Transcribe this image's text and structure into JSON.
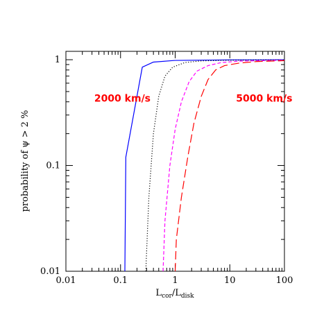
{
  "chart_data": {
    "type": "line",
    "xscale": "log",
    "yscale": "log",
    "xlim": [
      0.01,
      100
    ],
    "ylim": [
      0.01,
      1.2
    ],
    "xticks": [
      {
        "value": 0.01,
        "label": "0.01"
      },
      {
        "value": 0.1,
        "label": "0.1"
      },
      {
        "value": 1,
        "label": "1"
      },
      {
        "value": 10,
        "label": "10"
      },
      {
        "value": 100,
        "label": "100"
      }
    ],
    "yticks": [
      {
        "value": 0.01,
        "label": "0.01"
      },
      {
        "value": 0.1,
        "label": "0.1"
      },
      {
        "value": 1,
        "label": "1"
      }
    ],
    "ylabel": "probability of ψ > 2 %",
    "xlabel": {
      "main": "L",
      "sub1": "cor",
      "slash": "/L",
      "sub2": "disk"
    },
    "annotations": [
      {
        "text": "2000 km/s",
        "color": "#ff0000",
        "x": 0.033,
        "y": 0.4
      },
      {
        "text": "5000 km/s",
        "color": "#ff0000",
        "x": 13,
        "y": 0.4
      }
    ],
    "series": [
      {
        "color": "#0000ff",
        "style": "solid",
        "points": [
          [
            0.12,
            0.01
          ],
          [
            0.125,
            0.12
          ],
          [
            0.25,
            0.85
          ],
          [
            0.4,
            0.95
          ],
          [
            1,
            0.985
          ],
          [
            10,
            0.995
          ],
          [
            100,
            1.0
          ]
        ]
      },
      {
        "color": "#000000",
        "style": "dotted",
        "points": [
          [
            0.29,
            0.01
          ],
          [
            0.33,
            0.05
          ],
          [
            0.4,
            0.2
          ],
          [
            0.5,
            0.45
          ],
          [
            0.65,
            0.7
          ],
          [
            0.9,
            0.85
          ],
          [
            1.5,
            0.94
          ],
          [
            3,
            0.975
          ],
          [
            10,
            0.99
          ],
          [
            100,
            0.997
          ]
        ]
      },
      {
        "color": "#ff00ff",
        "style": "dashed",
        "points": [
          [
            0.6,
            0.01
          ],
          [
            0.65,
            0.03
          ],
          [
            0.8,
            0.1
          ],
          [
            1,
            0.22
          ],
          [
            1.3,
            0.4
          ],
          [
            1.8,
            0.62
          ],
          [
            2.5,
            0.78
          ],
          [
            4,
            0.88
          ],
          [
            7,
            0.94
          ],
          [
            15,
            0.97
          ],
          [
            100,
            0.99
          ]
        ]
      },
      {
        "color": "#ff0000",
        "style": "longdash",
        "points": [
          [
            1,
            0.01
          ],
          [
            1.05,
            0.02
          ],
          [
            1.3,
            0.05
          ],
          [
            1.7,
            0.12
          ],
          [
            2.2,
            0.25
          ],
          [
            3,
            0.45
          ],
          [
            4,
            0.65
          ],
          [
            5.5,
            0.8
          ],
          [
            8,
            0.88
          ],
          [
            15,
            0.93
          ],
          [
            30,
            0.96
          ],
          [
            100,
            0.98
          ]
        ]
      }
    ]
  }
}
